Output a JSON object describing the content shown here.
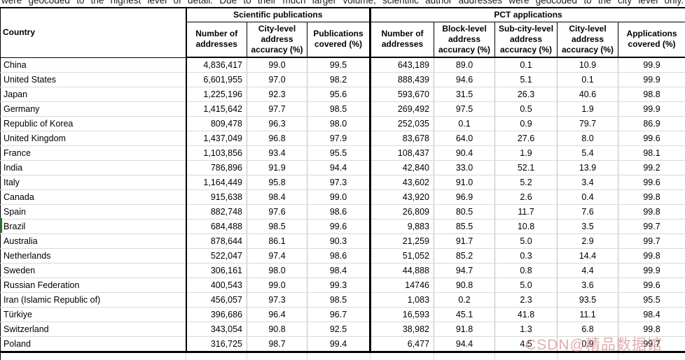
{
  "intro_text": "were geocoded to the highest level of detail. Due to their much larger volume, scientific author addresses were geocoded to the city level only.",
  "table": {
    "corner_header": "Country",
    "groups": [
      {
        "label": "Scientific publications",
        "columns": [
          "Number of addresses",
          "City-level address accuracy (%)",
          "Publications covered (%)"
        ]
      },
      {
        "label": "PCT applications",
        "columns": [
          "Number of addresses",
          "Block-level address accuracy (%)",
          "Sub-city-level address accuracy (%)",
          "City-level address accuracy (%)",
          "Applications covered (%)"
        ]
      }
    ],
    "rows": [
      [
        "China",
        "4,836,417",
        "99.0",
        "99.5",
        "643,189",
        "89.0",
        "0.1",
        "10.9",
        "99.9"
      ],
      [
        "United States",
        "6,601,955",
        "97.0",
        "98.2",
        "888,439",
        "94.6",
        "5.1",
        "0.1",
        "99.9"
      ],
      [
        "Japan",
        "1,225,196",
        "92.3",
        "95.6",
        "593,670",
        "31.5",
        "26.3",
        "40.6",
        "98.8"
      ],
      [
        "Germany",
        "1,415,642",
        "97.7",
        "98.5",
        "269,492",
        "97.5",
        "0.5",
        "1.9",
        "99.9"
      ],
      [
        "Republic of Korea",
        "809,478",
        "96.3",
        "98.0",
        "252,035",
        "0.1",
        "0.9",
        "79.7",
        "86.9"
      ],
      [
        "United Kingdom",
        "1,437,049",
        "96.8",
        "97.9",
        "83,678",
        "64.0",
        "27.6",
        "8.0",
        "99.6"
      ],
      [
        "France",
        "1,103,856",
        "93.4",
        "95.5",
        "108,437",
        "90.4",
        "1.9",
        "5.4",
        "98.1"
      ],
      [
        "India",
        "786,896",
        "91.9",
        "94.4",
        "42,840",
        "33.0",
        "52.1",
        "13.9",
        "99.2"
      ],
      [
        "Italy",
        "1,164,449",
        "95.8",
        "97.3",
        "43,602",
        "91.0",
        "5.2",
        "3.4",
        "99.6"
      ],
      [
        "Canada",
        "915,638",
        "98.4",
        "99.0",
        "43,920",
        "96.9",
        "2.6",
        "0.4",
        "99.8"
      ],
      [
        "Spain",
        "882,748",
        "97.6",
        "98.6",
        "26,809",
        "80.5",
        "11.7",
        "7.6",
        "99.8"
      ],
      [
        "Brazil",
        "684,488",
        "98.5",
        "99.6",
        "9,883",
        "85.5",
        "10.8",
        "3.5",
        "99.7"
      ],
      [
        "Australia",
        "878,644",
        "86.1",
        "90.3",
        "21,259",
        "91.7",
        "5.0",
        "2.9",
        "99.7"
      ],
      [
        "Netherlands",
        "522,047",
        "97.4",
        "98.6",
        "51,052",
        "85.2",
        "0.3",
        "14.4",
        "99.8"
      ],
      [
        "Sweden",
        "306,161",
        "98.0",
        "98.4",
        "44,888",
        "94.7",
        "0.8",
        "4.4",
        "99.9"
      ],
      [
        "Russian Federation",
        "400,543",
        "99.0",
        "99.3",
        "14746",
        "90.8",
        "5.0",
        "3.6",
        "99.6"
      ],
      [
        "Iran (Islamic Republic of)",
        "456,057",
        "97.3",
        "98.5",
        "1,083",
        "0.2",
        "2.3",
        "93.5",
        "95.5"
      ],
      [
        "Türkiye",
        "396,686",
        "96.4",
        "96.7",
        "16,593",
        "45.1",
        "41.8",
        "11.1",
        "98.4"
      ],
      [
        "Switzerland",
        "343,054",
        "90.8",
        "92.5",
        "38,982",
        "91.8",
        "1.3",
        "6.8",
        "99.8"
      ],
      [
        "Poland",
        "316,725",
        "98.7",
        "99.4",
        "6,477",
        "94.4",
        "4.5",
        "0.9",
        "99.7"
      ]
    ]
  },
  "watermark": "CSDN@精品数据馆",
  "colors": {
    "major_border": "#000000",
    "grid_horizontal": "#d9d9d9",
    "grid_vertical": "#bfbfbf",
    "watermark": "#c46c6c",
    "artifact_green": "#2f6b33"
  }
}
